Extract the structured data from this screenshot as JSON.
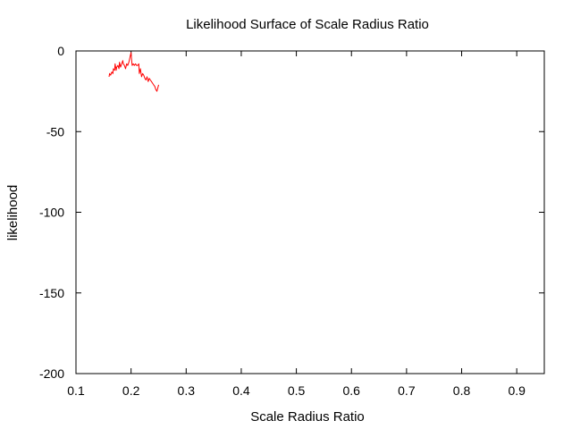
{
  "chart_data": {
    "type": "line",
    "title": "Likelihood Surface of Scale Radius Ratio",
    "xlabel": "Scale Radius Ratio",
    "ylabel": "likelihood",
    "xlim": [
      0.1,
      0.95
    ],
    "ylim": [
      -200,
      0
    ],
    "xticks": [
      0.1,
      0.2,
      0.3,
      0.4,
      0.5,
      0.6,
      0.7,
      0.8,
      0.9
    ],
    "xtick_labels": [
      "0.1",
      "0.2",
      "0.3",
      "0.4",
      "0.5",
      "0.6",
      "0.7",
      "0.8",
      "0.9"
    ],
    "yticks": [
      0,
      -50,
      -100,
      -150,
      -200
    ],
    "ytick_labels": [
      "0",
      "-50",
      "-100",
      "-150",
      "-200"
    ],
    "grid": false,
    "legend": "none",
    "series": [
      {
        "color": "#ff0000",
        "x": [
          0.16,
          0.161,
          0.163,
          0.165,
          0.167,
          0.168,
          0.17,
          0.171,
          0.173,
          0.174,
          0.176,
          0.178,
          0.179,
          0.181,
          0.183,
          0.185,
          0.186,
          0.188,
          0.19,
          0.192,
          0.194,
          0.196,
          0.198,
          0.2,
          0.201,
          0.202,
          0.204,
          0.206,
          0.208,
          0.21,
          0.212,
          0.214,
          0.215,
          0.217,
          0.219,
          0.221,
          0.223,
          0.225,
          0.227,
          0.229,
          0.231,
          0.233,
          0.235,
          0.237,
          0.239,
          0.241,
          0.243,
          0.245,
          0.247,
          0.25
        ],
        "y": [
          -16,
          -14,
          -15,
          -13,
          -14,
          -11,
          -12,
          -8,
          -12,
          -10,
          -9,
          -11,
          -7,
          -10,
          -8,
          -6,
          -8,
          -9,
          -11,
          -8,
          -9,
          -7,
          -4,
          -1,
          -6,
          -9,
          -8,
          -9,
          -8,
          -9,
          -9,
          -8,
          -14,
          -11,
          -16,
          -14,
          -15,
          -17,
          -18,
          -16,
          -19,
          -17,
          -18,
          -19,
          -20,
          -21,
          -22,
          -24,
          -25,
          -21
        ]
      }
    ]
  }
}
